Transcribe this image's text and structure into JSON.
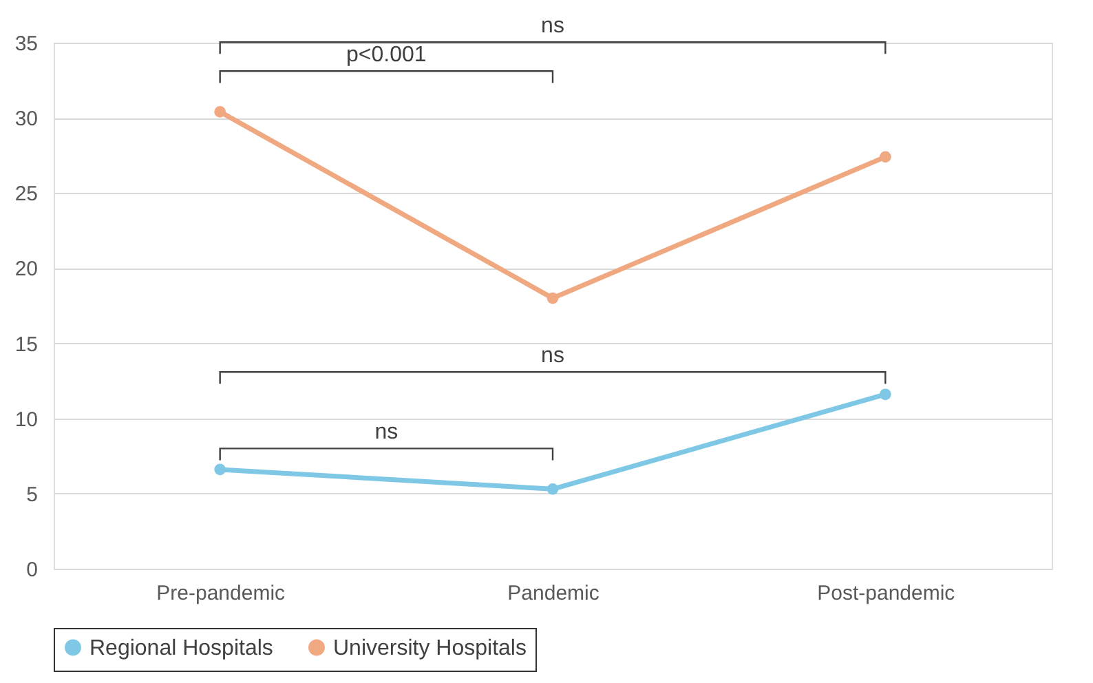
{
  "chart_data": {
    "type": "line",
    "categories": [
      "Pre-pandemic",
      "Pandemic",
      "Post-pandemic"
    ],
    "series": [
      {
        "name": "Regional Hospitals",
        "color": "#7ec8e6",
        "values": [
          6.6,
          5.3,
          11.6
        ]
      },
      {
        "name": "University Hospitals",
        "color": "#f0a880",
        "values": [
          30.4,
          18.0,
          27.4
        ]
      }
    ],
    "ylim": [
      0,
      35
    ],
    "yticks": [
      0,
      5,
      10,
      15,
      20,
      25,
      30,
      35
    ],
    "grid": "y",
    "legend": "bottom",
    "marker": "circle",
    "line_style": "solid",
    "annotations": [
      "ns",
      "p<0.001",
      "ns",
      "ns"
    ]
  }
}
